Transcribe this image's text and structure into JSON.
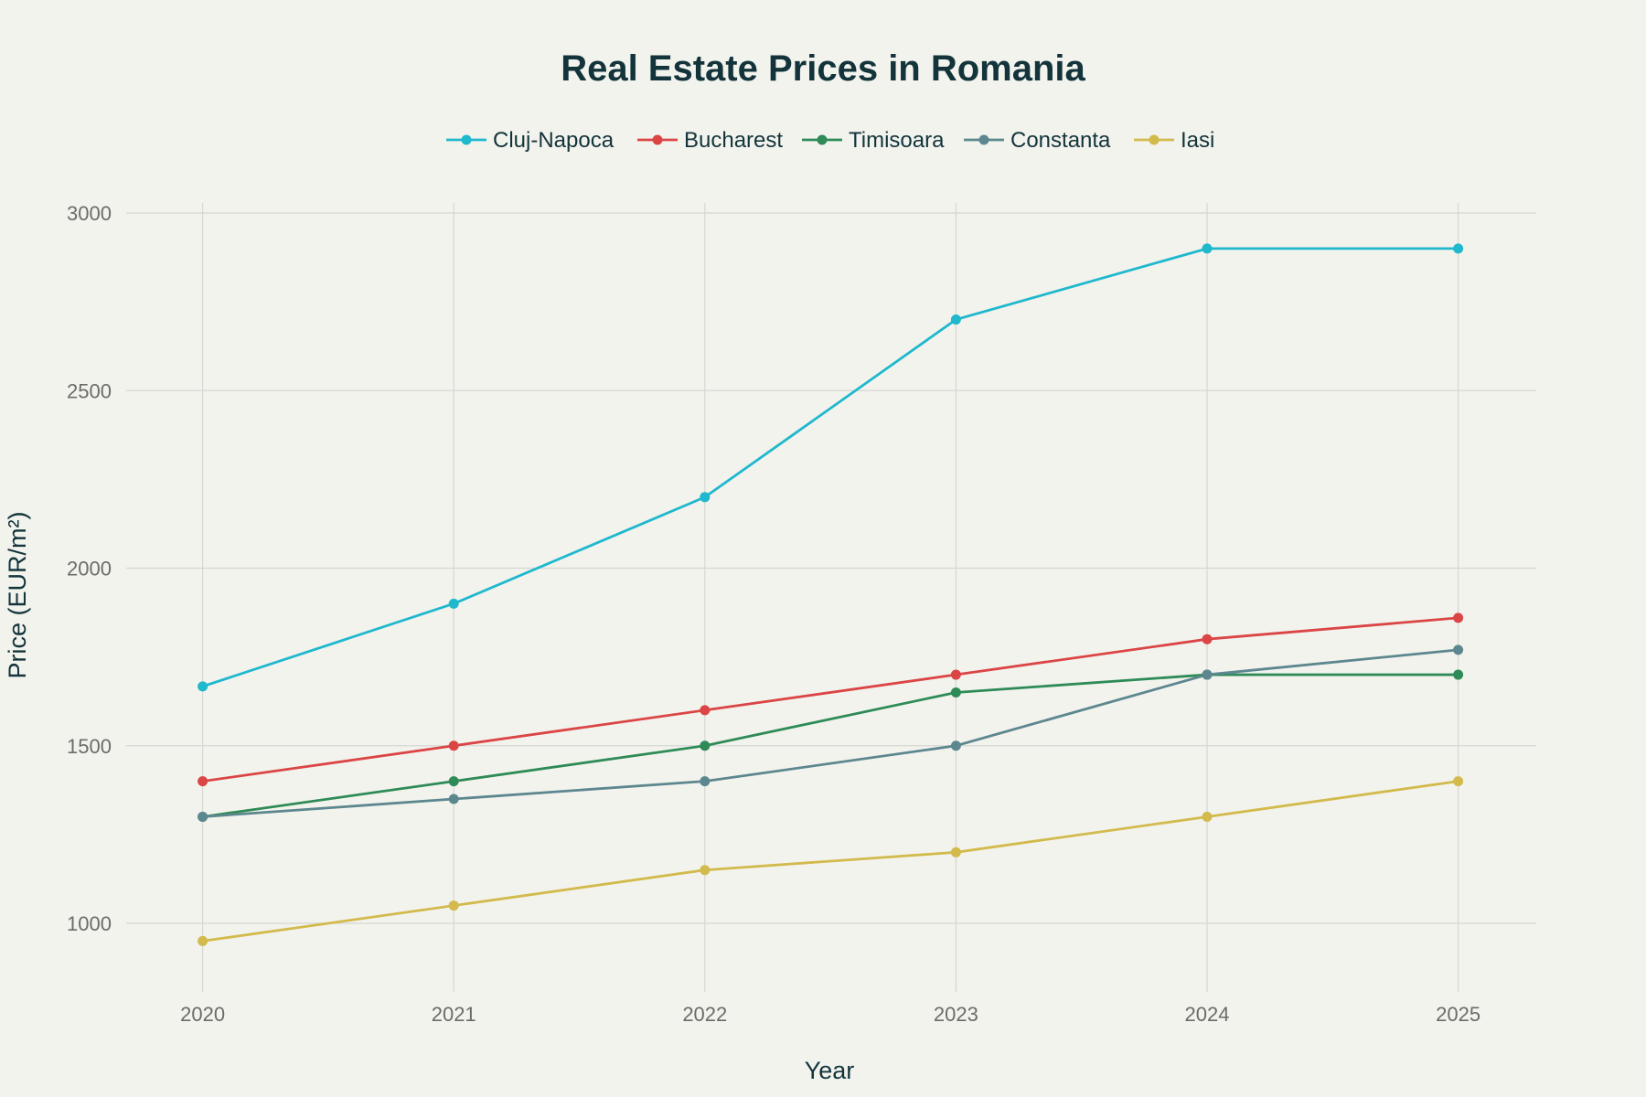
{
  "chart_data": {
    "type": "line",
    "title": "Real Estate Prices in Romania",
    "xlabel": "Year",
    "ylabel": "Price (EUR/m²)",
    "x": [
      2020,
      2021,
      2022,
      2023,
      2024,
      2025
    ],
    "x_tick_labels": [
      "2020",
      "2021",
      "2022",
      "2023",
      "2024",
      "2025"
    ],
    "y_ticks": [
      1000,
      1500,
      2000,
      2500,
      3000
    ],
    "y_tick_labels": [
      "1000",
      "1500",
      "2000",
      "2500",
      "3000"
    ],
    "ylim": [
      1000,
      3000
    ],
    "grid": true,
    "legend_position": "top-center",
    "series": [
      {
        "name": "Cluj-Napoca",
        "color": "#1fb8cd",
        "values": [
          1667,
          1900,
          2200,
          2700,
          2900,
          2900
        ]
      },
      {
        "name": "Bucharest",
        "color": "#db4545",
        "values": [
          1400,
          1500,
          1600,
          1700,
          1800,
          1860
        ]
      },
      {
        "name": "Timisoara",
        "color": "#2e8b57",
        "values": [
          1300,
          1400,
          1500,
          1650,
          1700,
          1700
        ]
      },
      {
        "name": "Constanta",
        "color": "#5d878f",
        "values": [
          1300,
          1350,
          1400,
          1500,
          1700,
          1770
        ]
      },
      {
        "name": "Iasi",
        "color": "#d2ba4c",
        "values": [
          950,
          1050,
          1150,
          1200,
          1300,
          1400
        ]
      }
    ]
  }
}
